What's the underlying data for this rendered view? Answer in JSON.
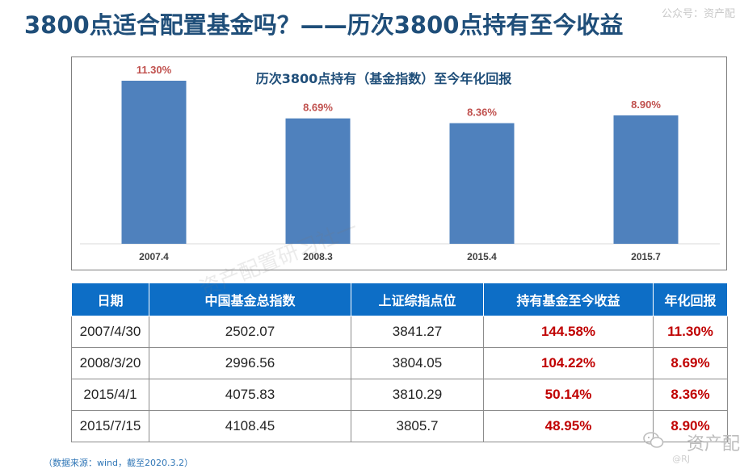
{
  "title": "3800点适合配置基金吗？——历次3800点持有至今收益",
  "watermarks": {
    "top_right": "公众号：资产配",
    "diagonal": "资产配置研习社一",
    "bottom_right": "资产配",
    "bottom_sub": "@RJ"
  },
  "chart_data": {
    "type": "bar",
    "title": "历次3800点持有（基金指数）至今年化回报",
    "categories": [
      "2007.4",
      "2008.3",
      "2015.4",
      "2015.7"
    ],
    "values": [
      11.3,
      8.69,
      8.36,
      8.9
    ],
    "value_labels": [
      "11.30%",
      "8.69%",
      "8.36%",
      "8.90%"
    ],
    "ylim": [
      0,
      12
    ],
    "bar_color": "#4f81bd",
    "label_color": "#c0504d",
    "grid": false,
    "xlabel": "",
    "ylabel": ""
  },
  "table": {
    "headers": [
      "日期",
      "中国基金总指数",
      "上证综指点位",
      "持有基金至今收益",
      "年化回报"
    ],
    "rows": [
      [
        "2007/4/30",
        "2502.07",
        "3841.27",
        "144.58%",
        "11.30%"
      ],
      [
        "2008/3/20",
        "2996.56",
        "3804.05",
        "104.22%",
        "8.69%"
      ],
      [
        "2015/4/1",
        "4075.83",
        "3810.29",
        "50.14%",
        "8.36%"
      ],
      [
        "2015/7/15",
        "4108.45",
        "3805.7",
        "48.95%",
        "8.90%"
      ]
    ],
    "header_color": "#0d6ec6",
    "highlight_color": "#c00000"
  },
  "source": "（数据来源：wind，截至2020.3.2）"
}
